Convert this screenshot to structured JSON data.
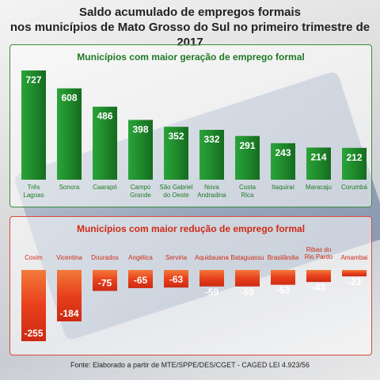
{
  "title_line1": "Saldo acumulado de empregos formais",
  "title_line2": "nos municípios de Mato Grosso do Sul no primeiro trimestre de 2017",
  "footer": "Fonte: Elaborado a partir de MTE/SPPE/DES/CGET - CAGED LEI 4.923/56",
  "colors": {
    "gain": "#1f8a2b",
    "loss": "#e8401c"
  },
  "chart_data": [
    {
      "type": "bar",
      "title": "Municípios com maior geração de emprego formal",
      "categories": [
        "Três\nLagoas",
        "Sonora",
        "Caarapó",
        "Campo\nGrande",
        "São Gabriel\ndo Oeste",
        "Nova\nAndradina",
        "Costa\nRica",
        "Itaquiraí",
        "Maracaju",
        "Corumbá"
      ],
      "values": [
        727,
        608,
        486,
        398,
        352,
        332,
        291,
        243,
        214,
        212
      ],
      "ylim": [
        0,
        727
      ]
    },
    {
      "type": "bar",
      "title": "Municípios com maior redução de emprego formal",
      "categories": [
        "Coxim",
        "Vicentina",
        "Dourados",
        "Angélica",
        "Serviria",
        "Aquidauana",
        "Bataguassu",
        "Brasilândia",
        "Ribas do\nRio Pardo",
        "Amambai"
      ],
      "values": [
        -255,
        -184,
        -75,
        -65,
        -63,
        -59,
        -59,
        -53,
        -43,
        -23
      ],
      "ylim": [
        -255,
        0
      ]
    }
  ]
}
